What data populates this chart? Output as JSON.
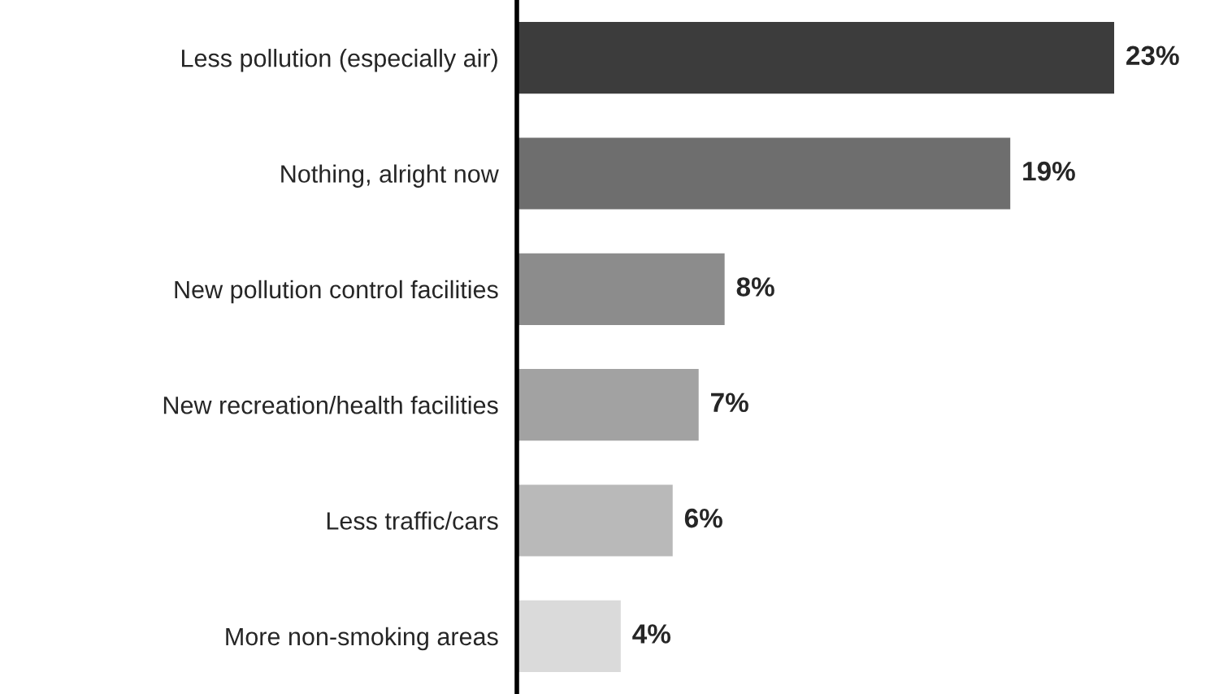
{
  "chart_data": {
    "type": "bar",
    "orientation": "horizontal",
    "categories": [
      "Less pollution (especially air)",
      "Nothing, alright now",
      "New pollution control facilities",
      "New recreation/health facilities",
      "Less traffic/cars",
      "More non-smoking areas"
    ],
    "values": [
      23,
      19,
      8,
      7,
      6,
      4
    ],
    "colors": [
      "#3c3c3c",
      "#6e6e6e",
      "#8c8c8c",
      "#a2a2a2",
      "#b9b9b9",
      "#dadada"
    ],
    "value_labels": [
      "23%",
      "19%",
      "8%",
      "7%",
      "6%",
      "4%"
    ],
    "grid": false,
    "legend": false
  }
}
